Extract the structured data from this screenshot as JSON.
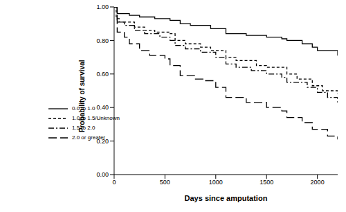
{
  "chart_data": {
    "type": "line",
    "xlabel": "Days since amputation",
    "ylabel": "Probability of survival",
    "xlim": [
      0,
      2200
    ],
    "xticks": [
      0,
      500,
      1000,
      1500,
      2000
    ],
    "ylim": [
      0,
      1
    ],
    "yticks": [
      {
        "value": 0,
        "label": "0.00"
      },
      {
        "value": 0.2,
        "label": "0.20"
      },
      {
        "value": 0.4,
        "label": "0.40"
      },
      {
        "value": 0.6,
        "label": "0.60"
      },
      {
        "value": 0.8,
        "label": "0.80"
      },
      {
        "value": 1,
        "label": "1.00"
      }
    ],
    "grid": false,
    "legend": "left",
    "series": [
      {
        "name": "0.0 to 1.0",
        "color": "#000000",
        "line_style": "solid",
        "x": [
          0,
          30,
          150,
          250,
          400,
          550,
          650,
          750,
          950,
          1100,
          1300,
          1500,
          1650,
          1700,
          1850,
          1950,
          2000,
          2200
        ],
        "values": [
          1.0,
          0.96,
          0.95,
          0.94,
          0.93,
          0.92,
          0.9,
          0.89,
          0.87,
          0.84,
          0.83,
          0.82,
          0.81,
          0.8,
          0.78,
          0.76,
          0.74,
          0.71
        ]
      },
      {
        "name": "1.0 to 1.5/Unknown",
        "color": "#000000",
        "line_style": "dashed",
        "x": [
          0,
          20,
          50,
          200,
          300,
          400,
          550,
          600,
          700,
          850,
          950,
          1100,
          1200,
          1400,
          1500,
          1700,
          1800,
          1950,
          2050,
          2200
        ],
        "values": [
          1.0,
          0.93,
          0.91,
          0.88,
          0.86,
          0.85,
          0.84,
          0.8,
          0.78,
          0.76,
          0.74,
          0.7,
          0.68,
          0.65,
          0.64,
          0.6,
          0.57,
          0.53,
          0.5,
          0.48
        ]
      },
      {
        "name": "1.5 to 2.0",
        "color": "#000000",
        "line_style": "dashdot",
        "x": [
          0,
          30,
          100,
          200,
          300,
          450,
          550,
          600,
          700,
          850,
          1000,
          1100,
          1200,
          1350,
          1500,
          1650,
          1700,
          1900,
          2000,
          2100,
          2200
        ],
        "values": [
          1.0,
          0.91,
          0.89,
          0.86,
          0.84,
          0.82,
          0.8,
          0.77,
          0.75,
          0.73,
          0.7,
          0.66,
          0.64,
          0.62,
          0.6,
          0.58,
          0.55,
          0.52,
          0.49,
          0.46,
          0.43
        ]
      },
      {
        "name": "2.0 or greater",
        "color": "#000000",
        "line_style": "longdash",
        "x": [
          0,
          30,
          100,
          150,
          250,
          350,
          500,
          550,
          650,
          800,
          900,
          1000,
          1100,
          1300,
          1500,
          1650,
          1700,
          1850,
          1950,
          2100,
          2200
        ],
        "values": [
          1.0,
          0.85,
          0.82,
          0.78,
          0.74,
          0.71,
          0.69,
          0.65,
          0.59,
          0.57,
          0.56,
          0.52,
          0.46,
          0.43,
          0.4,
          0.38,
          0.34,
          0.31,
          0.27,
          0.23,
          0.21
        ]
      }
    ]
  }
}
